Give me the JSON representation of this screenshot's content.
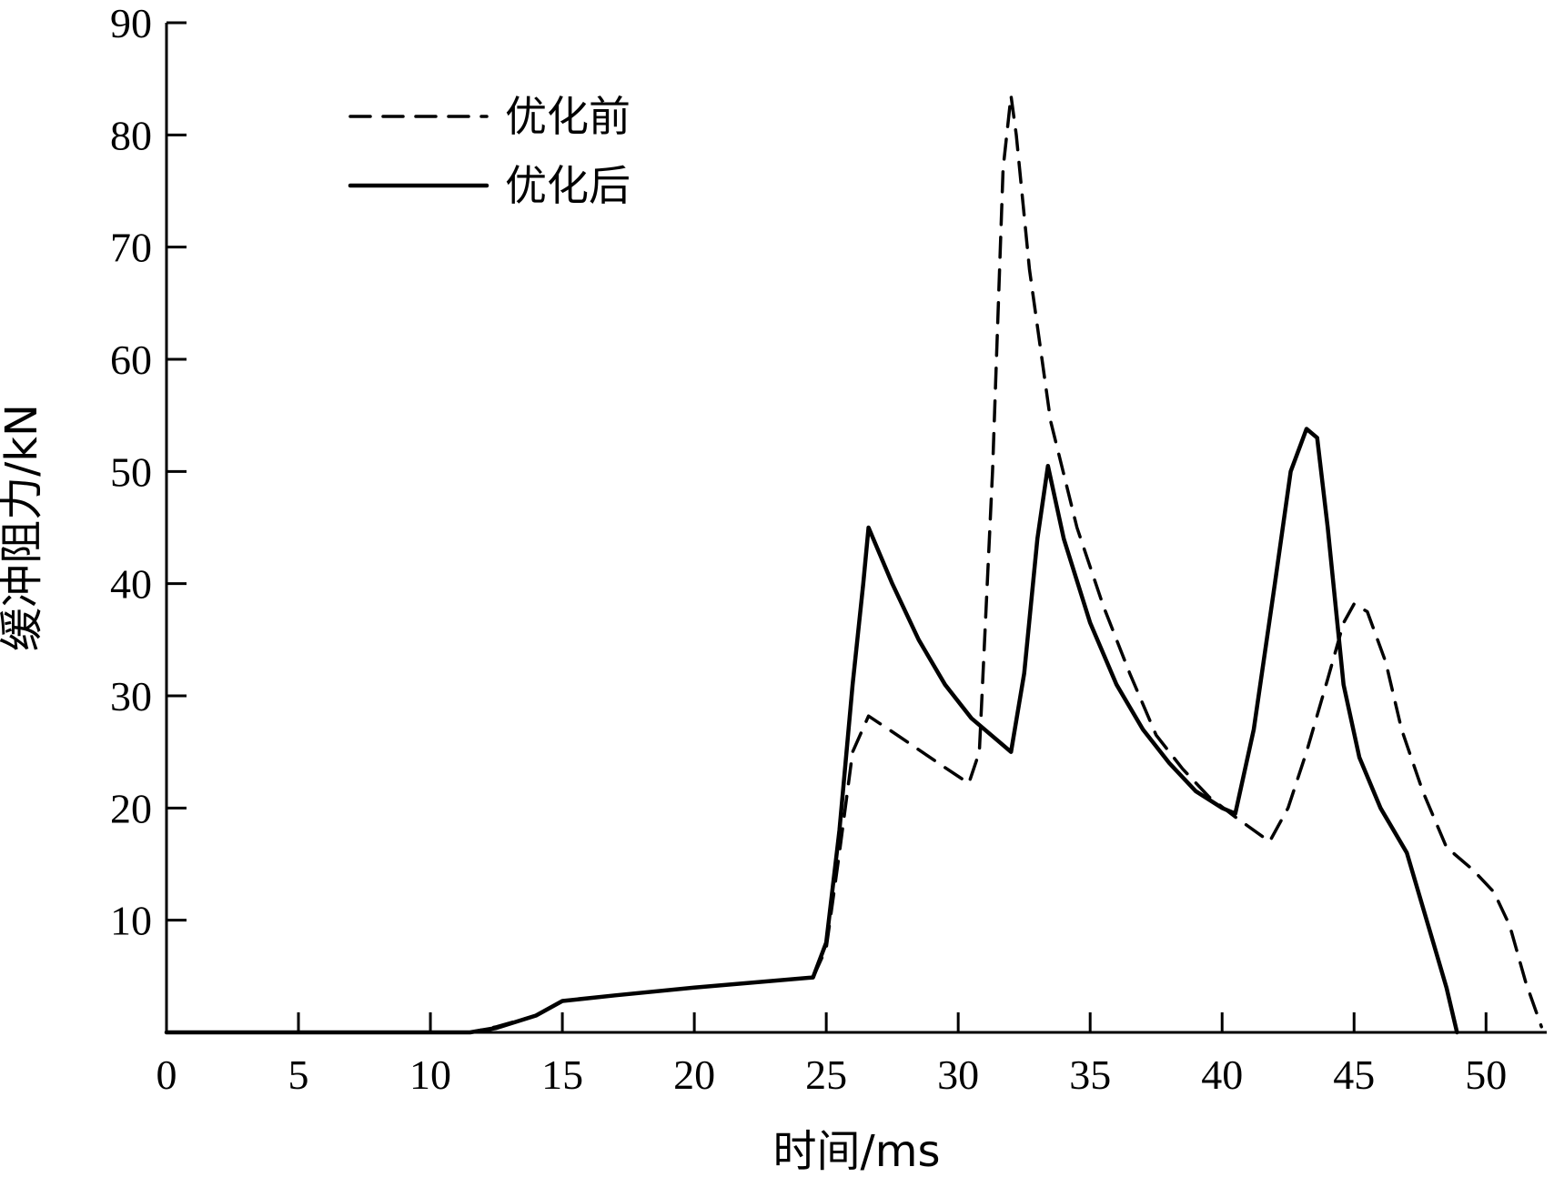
{
  "chart_data": {
    "type": "line",
    "xlabel": "时间/ms",
    "ylabel": "缓冲阻力/kN",
    "xlim": [
      0,
      52.3
    ],
    "ylim": [
      0,
      90
    ],
    "xticks": [
      0,
      5,
      10,
      15,
      20,
      25,
      30,
      35,
      40,
      45,
      50
    ],
    "yticks": [
      10,
      20,
      30,
      40,
      50,
      60,
      70,
      80,
      90
    ],
    "grid": false,
    "legend_position": "top-left",
    "series": [
      {
        "name": "优化前",
        "style": "dashed",
        "color": "#000000",
        "x": [
          0,
          11.5,
          12.5,
          14,
          15,
          17,
          20,
          24.5,
          25,
          25.5,
          26,
          26.6,
          27.5,
          28.5,
          29.5,
          30.4,
          30.8,
          31.3,
          31.7,
          32.0,
          32.2,
          32.7,
          33.5,
          34.5,
          35.5,
          36.5,
          37.5,
          38.5,
          39.5,
          40.5,
          41.8,
          42.5,
          43.2,
          44.0,
          44.6,
          45.0,
          45.5,
          46.2,
          46.8,
          47.6,
          48.5,
          49.5,
          50.3,
          50.9,
          51.5,
          52.1
        ],
        "y": [
          0,
          0,
          0.5,
          1.5,
          2.8,
          3.3,
          4.0,
          4.9,
          7.5,
          16.0,
          25.0,
          28.2,
          26.8,
          25.2,
          23.6,
          22.2,
          25.0,
          50.0,
          77.0,
          83.5,
          80.0,
          68.0,
          54.5,
          45.0,
          38.0,
          32.0,
          26.5,
          23.5,
          21.0,
          19.2,
          17.0,
          20.0,
          25.0,
          31.5,
          36.5,
          38.2,
          37.5,
          33.0,
          27.0,
          21.5,
          16.5,
          14.5,
          12.5,
          9.5,
          4.5,
          0.5
        ]
      },
      {
        "name": "优化后",
        "style": "solid",
        "color": "#000000",
        "x": [
          0,
          11.5,
          12.5,
          14,
          15,
          17,
          20,
          24.5,
          25,
          25.5,
          26,
          26.4,
          26.6,
          27.5,
          28.5,
          29.5,
          30.5,
          31.5,
          32.0,
          32.5,
          33.0,
          33.4,
          34.0,
          35.0,
          36.0,
          37.0,
          38.0,
          39.0,
          40.0,
          40.5,
          41.2,
          42.0,
          42.6,
          43.2,
          43.6,
          44.0,
          44.6,
          45.2,
          46.0,
          47.0,
          48.0,
          48.5,
          48.9
        ],
        "y": [
          0,
          0,
          0.4,
          1.5,
          2.8,
          3.3,
          4.0,
          4.9,
          8.0,
          18.0,
          31.0,
          40.0,
          45.0,
          40.0,
          35.0,
          31.0,
          28.0,
          26.0,
          25.0,
          32.0,
          44.0,
          50.5,
          44.0,
          36.5,
          31.0,
          27.0,
          24.0,
          21.5,
          20.0,
          19.5,
          27.0,
          40.0,
          50.0,
          53.8,
          53.0,
          45.0,
          31.0,
          24.5,
          20.0,
          16.0,
          8.0,
          4.0,
          0.0
        ]
      }
    ]
  }
}
